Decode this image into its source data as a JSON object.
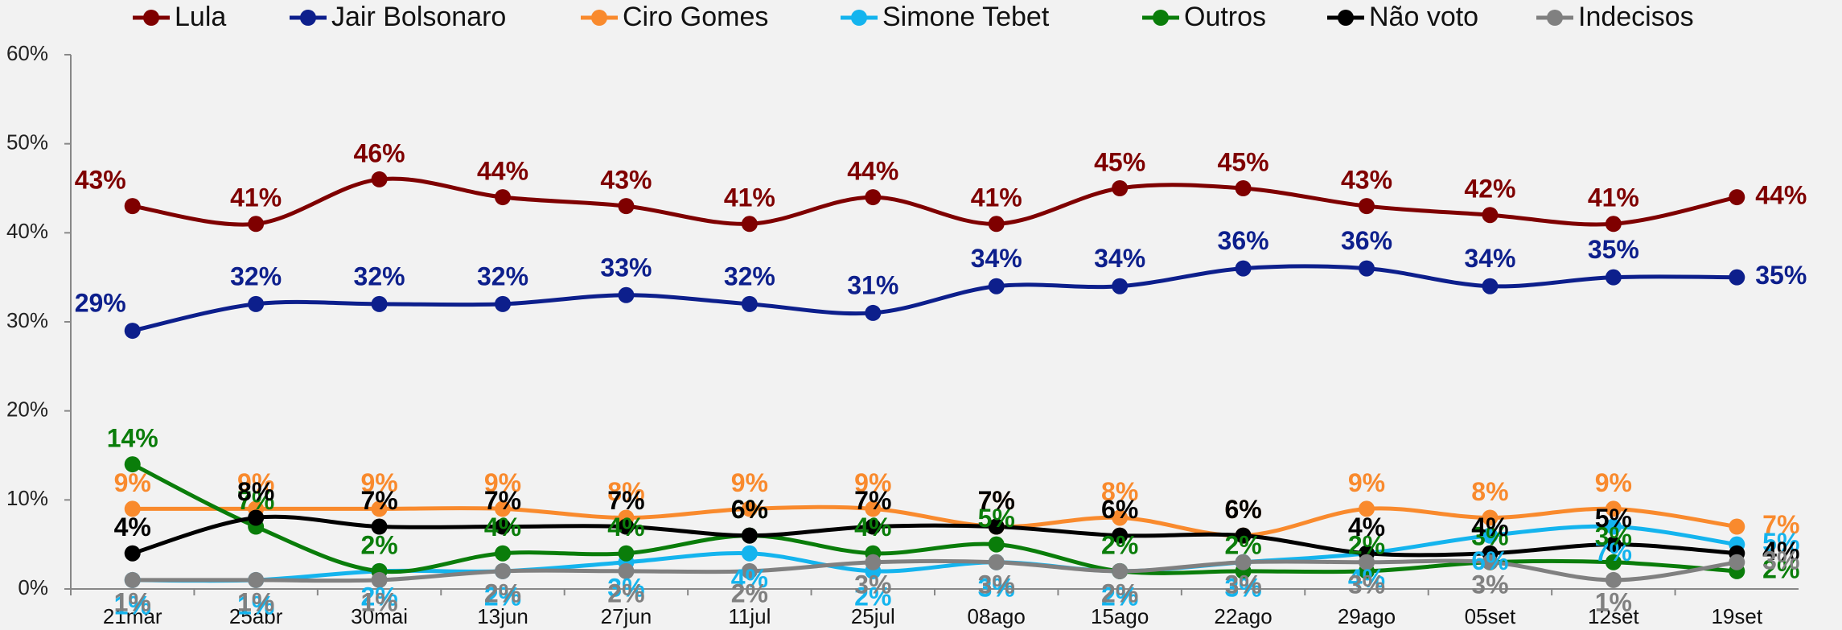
{
  "chart_data": {
    "type": "line",
    "categories": [
      "21mar",
      "25abr",
      "30mai",
      "13jun",
      "27jun",
      "11jul",
      "25jul",
      "08ago",
      "15ago",
      "22ago",
      "29ago",
      "05set",
      "12set",
      "19set"
    ],
    "ylim": [
      0,
      60
    ],
    "yticks": [
      {
        "value": 0,
        "label": "0%"
      },
      {
        "value": 10,
        "label": "10%"
      },
      {
        "value": 20,
        "label": "20%"
      },
      {
        "value": 30,
        "label": "30%"
      },
      {
        "value": 40,
        "label": "40%"
      },
      {
        "value": 50,
        "label": "50%"
      },
      {
        "value": 60,
        "label": "60%"
      }
    ],
    "legend": "top",
    "series": [
      {
        "name": "Lula",
        "color": "#7f0000",
        "values": [
          43,
          41,
          46,
          44,
          43,
          41,
          44,
          41,
          45,
          45,
          43,
          42,
          41,
          44
        ],
        "value_labels": [
          "43%",
          "41%",
          "46%",
          "44%",
          "43%",
          "41%",
          "44%",
          "41%",
          "45%",
          "45%",
          "43%",
          "42%",
          "41%",
          "44%"
        ]
      },
      {
        "name": "Jair Bolsonaro",
        "color": "#0d1f8c",
        "values": [
          29,
          32,
          32,
          32,
          33,
          32,
          31,
          34,
          34,
          36,
          36,
          34,
          35,
          35
        ],
        "value_labels": [
          "29%",
          "32%",
          "32%",
          "32%",
          "33%",
          "32%",
          "31%",
          "34%",
          "34%",
          "36%",
          "36%",
          "34%",
          "35%",
          "35%"
        ]
      },
      {
        "name": "Ciro Gomes",
        "color": "#f98a2d",
        "values": [
          9,
          9,
          9,
          9,
          8,
          9,
          9,
          7,
          8,
          6,
          9,
          8,
          9,
          7
        ],
        "value_labels": [
          "9%",
          "9%",
          "9%",
          "9%",
          "8%",
          "9%",
          "9%",
          "7%",
          "8%",
          "6%",
          "9%",
          "8%",
          "9%",
          "7%"
        ]
      },
      {
        "name": "Simone Tebet",
        "color": "#14b4ee",
        "values": [
          1,
          1,
          2,
          2,
          3,
          4,
          2,
          3,
          2,
          3,
          4,
          6,
          7,
          5
        ],
        "value_labels": [
          "1%",
          "1%",
          "2%",
          "2%",
          "3%",
          "4%",
          "2%",
          "3%",
          "2%",
          "3%",
          "4%",
          "6%",
          "7%",
          "5%"
        ]
      },
      {
        "name": "Outros",
        "color": "#0a7d0a",
        "values": [
          14,
          7,
          2,
          4,
          4,
          6,
          4,
          5,
          2,
          2,
          2,
          3,
          3,
          2
        ],
        "value_labels": [
          "14%",
          "7%",
          "2%",
          "4%",
          "4%",
          "6%",
          "4%",
          "5%",
          "2%",
          "2%",
          "2%",
          "3%",
          "3%",
          "2%"
        ]
      },
      {
        "name": "Não voto",
        "color": "#000000",
        "values": [
          4,
          8,
          7,
          7,
          7,
          6,
          7,
          7,
          6,
          6,
          4,
          4,
          5,
          4
        ],
        "value_labels": [
          "4%",
          "8%",
          "7%",
          "7%",
          "7%",
          "6%",
          "7%",
          "7%",
          "6%",
          "6%",
          "4%",
          "4%",
          "5%",
          "4%"
        ]
      },
      {
        "name": "Indecisos",
        "color": "#808080",
        "values": [
          1,
          1,
          1,
          2,
          2,
          2,
          3,
          3,
          2,
          3,
          3,
          3,
          1,
          3
        ],
        "value_labels": [
          "1%",
          "1%",
          "1%",
          "2%",
          "2%",
          "2%",
          "3%",
          "3%",
          "2%",
          "3%",
          "3%",
          "3%",
          "1%",
          "3%"
        ]
      }
    ]
  }
}
